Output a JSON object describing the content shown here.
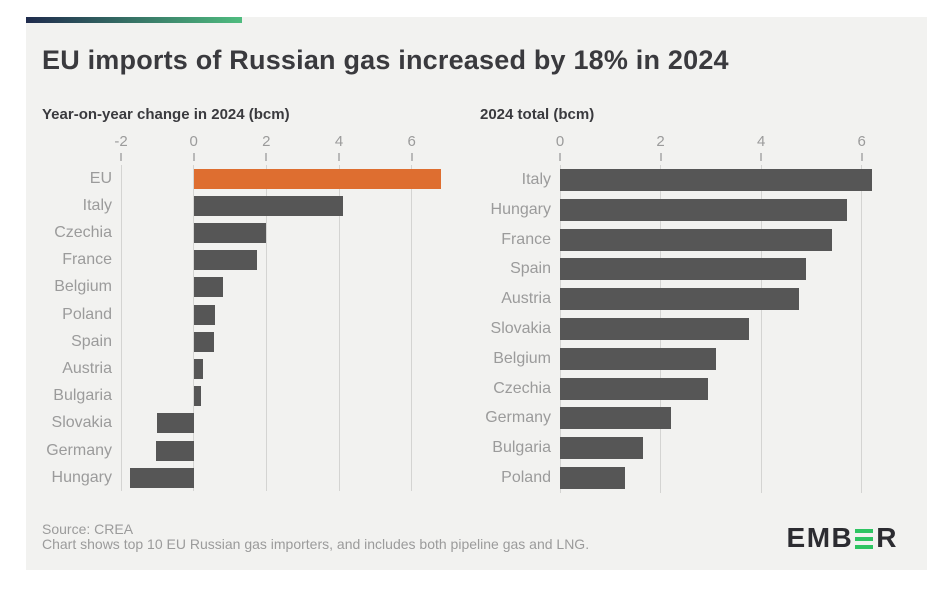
{
  "header": {
    "title": "EU imports of Russian gas increased by 18% in 2024"
  },
  "footer": {
    "source": "Source: CREA",
    "note": "Chart shows top 10 EU Russian gas importers, and includes both pipeline gas and LNG."
  },
  "logo": {
    "name": "EMBER",
    "prefix": "EMB",
    "suffix": "R"
  },
  "colors": {
    "card_background": "#f2f2f0",
    "bar": "#565656",
    "highlight": "#de6e30",
    "gridline": "#d4d4d2",
    "axis_label": "#9b9b9b",
    "title_text": "#3a3a3e",
    "gradient_start": "#1f2b4d",
    "gradient_end": "#4fbc7f",
    "logo_green": "#2ec462"
  },
  "chart_data": [
    {
      "type": "bar",
      "orientation": "horizontal",
      "title": "Year-on-year change in 2024 (bcm)",
      "categories": [
        "EU",
        "Italy",
        "Czechia",
        "France",
        "Belgium",
        "Poland",
        "Spain",
        "Austria",
        "Bulgaria",
        "Slovakia",
        "Germany",
        "Hungary"
      ],
      "values": [
        6.8,
        4.1,
        2.0,
        1.75,
        0.8,
        0.6,
        0.55,
        0.25,
        0.2,
        -1.0,
        -1.05,
        -1.75
      ],
      "highlight_category": "EU",
      "xlim": [
        -2,
        7
      ],
      "xticks": [
        -2,
        0,
        2,
        4,
        6
      ],
      "grid": true,
      "legend": false
    },
    {
      "type": "bar",
      "orientation": "horizontal",
      "title": "2024 total (bcm)",
      "categories": [
        "Italy",
        "Hungary",
        "France",
        "Spain",
        "Austria",
        "Slovakia",
        "Belgium",
        "Czechia",
        "Germany",
        "Bulgaria",
        "Poland"
      ],
      "values": [
        6.2,
        5.7,
        5.4,
        4.9,
        4.75,
        3.75,
        3.1,
        2.95,
        2.2,
        1.65,
        1.3
      ],
      "highlight_category": null,
      "xlim": [
        0,
        7
      ],
      "xticks": [
        0,
        2,
        4,
        6
      ],
      "grid": true,
      "legend": false
    }
  ]
}
